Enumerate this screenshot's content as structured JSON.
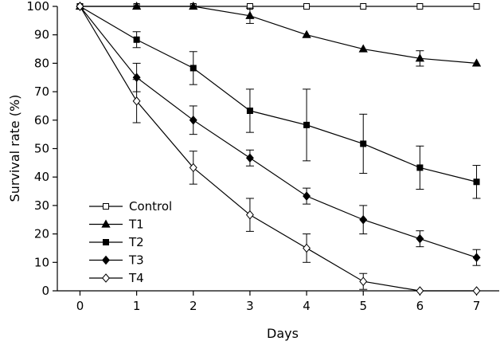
{
  "chart_data": {
    "type": "line",
    "title": "",
    "xlabel": "Days",
    "ylabel": "Survival rate (%)",
    "x": [
      0,
      1,
      2,
      3,
      4,
      5,
      6,
      7
    ],
    "xlim": [
      -0.4,
      7.4
    ],
    "ylim": [
      0,
      100
    ],
    "xticks": [
      "0",
      "1",
      "2",
      "3",
      "4",
      "5",
      "6",
      "7"
    ],
    "yticks": [
      "0",
      "10",
      "20",
      "30",
      "40",
      "50",
      "60",
      "70",
      "80",
      "90",
      "100"
    ],
    "grid": false,
    "legend_position": "bottom-left",
    "series": [
      {
        "name": "Control",
        "marker": "square-open",
        "values": [
          100,
          100,
          100,
          100,
          100,
          100,
          100,
          100
        ],
        "errors": [
          0,
          0,
          0,
          0,
          0,
          0,
          0,
          0
        ]
      },
      {
        "name": "T1",
        "marker": "triangle-filled",
        "values": [
          100,
          100,
          100,
          96.7,
          90,
          85,
          81.7,
          80
        ],
        "errors": [
          0,
          0,
          0,
          2.7,
          0,
          0,
          2.7,
          0
        ]
      },
      {
        "name": "T2",
        "marker": "square-filled",
        "values": [
          100,
          88.3,
          78.3,
          63.3,
          58.3,
          51.7,
          43.3,
          38.3
        ],
        "errors": [
          0,
          2.8,
          5.8,
          7.6,
          12.6,
          10.4,
          7.6,
          5.8
        ]
      },
      {
        "name": "T3",
        "marker": "diamond-filled",
        "values": [
          100,
          75,
          60,
          46.7,
          33.3,
          25,
          18.3,
          11.7
        ],
        "errors": [
          0,
          5,
          5,
          2.8,
          2.8,
          5,
          2.8,
          2.8
        ]
      },
      {
        "name": "T4",
        "marker": "diamond-open",
        "values": [
          100,
          66.7,
          43.3,
          26.7,
          15,
          3.3,
          0,
          0
        ],
        "errors": [
          0,
          7.6,
          5.8,
          5.8,
          5,
          2.8,
          0,
          0
        ]
      }
    ]
  }
}
